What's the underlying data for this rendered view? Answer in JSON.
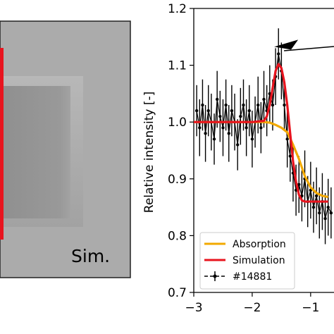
{
  "simulation_panel": {
    "label": "Sim.",
    "marker_color": "#e8141e"
  },
  "chart_data": {
    "type": "line",
    "title": "",
    "xlabel": "",
    "ylabel": "Relative intensity [-]",
    "xlim": [
      -3,
      -0.6
    ],
    "ylim": [
      0.7,
      1.2
    ],
    "xticks": [
      -3,
      -2,
      -1
    ],
    "xtick_labels": [
      "−3",
      "−2",
      "−1"
    ],
    "yticks": [
      0.7,
      0.8,
      0.9,
      1.0,
      1.1,
      1.2
    ],
    "ytick_labels": [
      "0.7",
      "0.8",
      "0.9",
      "1.0",
      "1.1",
      "1.2"
    ],
    "grid": false,
    "legend_position": "bottom-left",
    "series": [
      {
        "name": "Absorption",
        "kind": "line",
        "color": "#f2a900",
        "x": [
          -3.0,
          -2.6,
          -2.2,
          -2.0,
          -1.8,
          -1.7,
          -1.6,
          -1.5,
          -1.4,
          -1.3,
          -1.2,
          -1.1,
          -1.0,
          -0.9,
          -0.8,
          -0.7
        ],
        "y": [
          1.0,
          1.0,
          1.0,
          1.0,
          1.0,
          0.999,
          0.995,
          0.99,
          0.982,
          0.96,
          0.935,
          0.905,
          0.885,
          0.875,
          0.87,
          0.868
        ]
      },
      {
        "name": "Simulation",
        "kind": "line",
        "color": "#e8141e",
        "x": [
          -3.0,
          -2.5,
          -2.0,
          -1.8,
          -1.75,
          -1.7,
          -1.65,
          -1.6,
          -1.55,
          -1.5,
          -1.45,
          -1.4,
          -1.35,
          -1.3,
          -1.25,
          -1.2,
          -1.15,
          -1.1,
          -1.0,
          -0.9,
          -0.8,
          -0.7
        ],
        "y": [
          1.0,
          1.0,
          1.0,
          1.002,
          1.01,
          1.03,
          1.06,
          1.09,
          1.102,
          1.095,
          1.07,
          1.03,
          0.98,
          0.93,
          0.895,
          0.872,
          0.862,
          0.86,
          0.86,
          0.86,
          0.86,
          0.86
        ]
      },
      {
        "name": "#14881",
        "kind": "errorbar",
        "color": "#000000",
        "x": [
          -2.95,
          -2.9,
          -2.85,
          -2.8,
          -2.75,
          -2.7,
          -2.65,
          -2.6,
          -2.55,
          -2.5,
          -2.45,
          -2.4,
          -2.35,
          -2.3,
          -2.25,
          -2.2,
          -2.15,
          -2.1,
          -2.05,
          -2.0,
          -1.95,
          -1.9,
          -1.85,
          -1.8,
          -1.75,
          -1.7,
          -1.65,
          -1.6,
          -1.55,
          -1.5,
          -1.45,
          -1.4,
          -1.35,
          -1.3,
          -1.25,
          -1.2,
          -1.15,
          -1.1,
          -1.05,
          -1.0,
          -0.95,
          -0.9,
          -0.85,
          -0.8,
          -0.75,
          -0.7,
          -0.65
        ],
        "y": [
          1.02,
          0.99,
          1.03,
          0.98,
          1.02,
          1.0,
          0.97,
          1.04,
          1.01,
          0.99,
          1.03,
          0.98,
          1.02,
          1.0,
          0.96,
          1.01,
          1.03,
          0.99,
          1.02,
          0.97,
          1.0,
          1.03,
          0.99,
          1.04,
          1.02,
          1.05,
          1.03,
          1.08,
          1.12,
          1.09,
          1.03,
          0.97,
          0.94,
          0.91,
          0.88,
          0.89,
          0.87,
          0.9,
          0.86,
          0.88,
          0.85,
          0.87,
          0.84,
          0.86,
          0.83,
          0.85,
          0.84
        ],
        "err": [
          0.045,
          0.05,
          0.045,
          0.05,
          0.045,
          0.05,
          0.045,
          0.05,
          0.045,
          0.05,
          0.045,
          0.05,
          0.045,
          0.05,
          0.045,
          0.05,
          0.045,
          0.05,
          0.045,
          0.05,
          0.045,
          0.05,
          0.045,
          0.05,
          0.045,
          0.05,
          0.045,
          0.05,
          0.045,
          0.05,
          0.045,
          0.05,
          0.045,
          0.05,
          0.045,
          0.05,
          0.045,
          0.05,
          0.045,
          0.05,
          0.045,
          0.05,
          0.045,
          0.05,
          0.045,
          0.05,
          0.045
        ]
      }
    ],
    "annotation": {
      "kind": "arrow",
      "color": "#000000",
      "points_to": [
        -1.6,
        1.13
      ]
    }
  }
}
